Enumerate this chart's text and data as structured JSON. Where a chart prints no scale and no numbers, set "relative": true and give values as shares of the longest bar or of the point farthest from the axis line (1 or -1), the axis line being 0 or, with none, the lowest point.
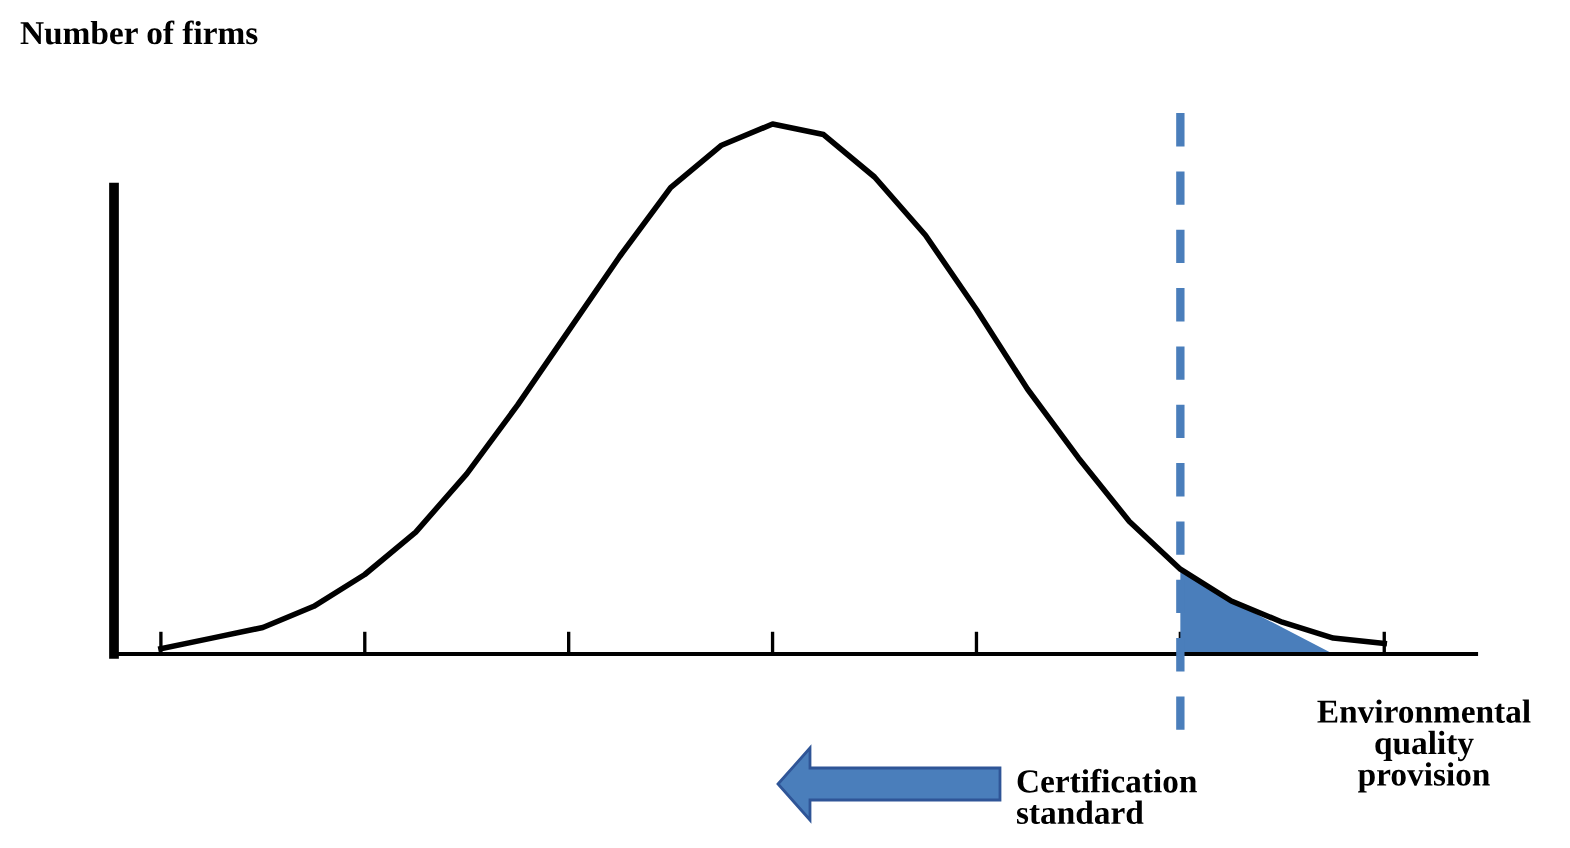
{
  "chart_data": {
    "type": "line",
    "relative": true,
    "ylabel": "Number of firms",
    "xlabel": "Environmental\nquality\nprovision",
    "categories": [
      null,
      null,
      null,
      null,
      null,
      null,
      null,
      null,
      null,
      null,
      null,
      null,
      null,
      null,
      null,
      null,
      null,
      null,
      null,
      null,
      null,
      null,
      null,
      null,
      null
    ],
    "series": [
      {
        "color": "#000000",
        "values": [
          0.01,
          0.03,
          0.05,
          0.09,
          0.15,
          0.23,
          0.34,
          0.47,
          0.61,
          0.75,
          0.88,
          0.96,
          1.0,
          0.98,
          0.9,
          0.79,
          0.65,
          0.5,
          0.37,
          0.25,
          0.16,
          0.1,
          0.06,
          0.03,
          0.02
        ]
      },
      {
        "type": "area",
        "color": "#4a7ebb",
        "values": [
          null,
          null,
          null,
          null,
          null,
          null,
          null,
          null,
          null,
          null,
          null,
          null,
          null,
          null,
          null,
          null,
          null,
          null,
          null,
          null,
          0.16,
          0.1,
          0.05,
          0.0,
          null
        ]
      }
    ],
    "annotations": [
      "Certification\nstandard"
    ],
    "marker": "none",
    "line_style": "solid"
  }
}
